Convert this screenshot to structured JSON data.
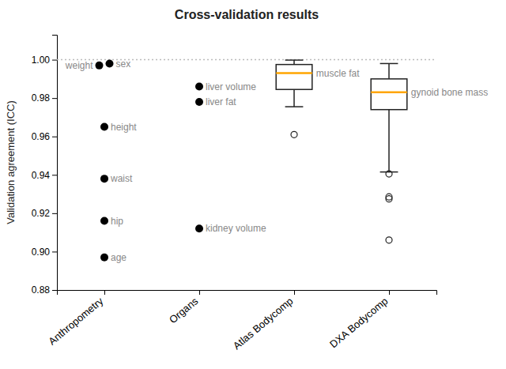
{
  "chart_data": {
    "type": "box",
    "title": "Cross-validation results",
    "ylabel": "Validation agreement (ICC)",
    "categories": [
      "Anthropometry",
      "Organs",
      "Atlas Bodycomp",
      "DXA Bodycomp"
    ],
    "groups": [
      {
        "type": "scatter",
        "color": "black",
        "points": [
          {
            "label": "age",
            "value": 0.897
          },
          {
            "label": "height",
            "value": 0.965
          },
          {
            "label": "weight",
            "value": 0.997
          },
          {
            "label": "waist",
            "value": 0.938
          },
          {
            "label": "hip",
            "value": 0.916
          },
          {
            "label": "sex",
            "value": 0.998
          }
        ]
      },
      {
        "type": "scatter",
        "color": "black",
        "points": [
          {
            "label": "kidney volume",
            "value": 0.912
          },
          {
            "label": "liver fat",
            "value": 0.978
          },
          {
            "label": "liver volume",
            "value": 0.986
          }
        ]
      },
      {
        "type": "box",
        "color": "orange",
        "q1": 0.9845,
        "median": 0.993,
        "q3": 0.9975,
        "whislo": 0.9755,
        "whishi": 0.9998,
        "fliers": [
          0.961
        ],
        "label": "muscle fat"
      },
      {
        "type": "box",
        "color": "orange",
        "q1": 0.974,
        "median": 0.983,
        "q3": 0.99,
        "whislo": 0.9415,
        "whishi": 0.998,
        "fliers": [
          0.9405,
          0.9285,
          0.9275,
          0.906
        ],
        "label": "gynoid bone mass"
      }
    ],
    "hline": {
      "value": 1.0,
      "color": "#bbbbbb",
      "line_style": "dotted"
    },
    "ylim": [
      0.88,
      1.013
    ],
    "yticks": [
      0.88,
      {
        "value": 0.9,
        "label": "0.90"
      },
      0.92,
      0.94,
      0.96,
      0.98,
      {
        "value": 1,
        "label": "1.00"
      }
    ],
    "grid": false
  }
}
